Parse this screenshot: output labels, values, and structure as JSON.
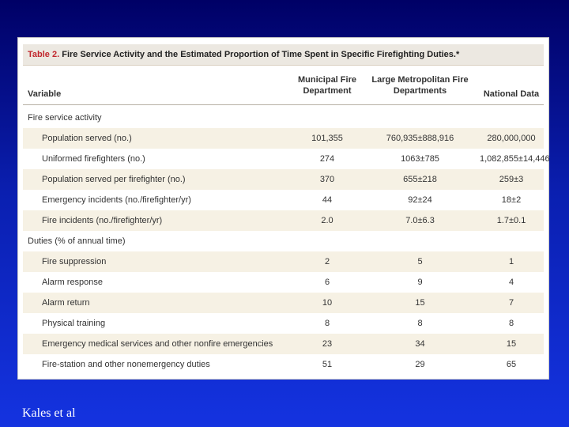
{
  "table": {
    "title_label": "Table 2.",
    "title_text": "Fire Service Activity and the Estimated Proportion of Time Spent in Specific Firefighting Duties.*",
    "headers": {
      "variable": "Variable",
      "col1": "Municipal Fire Department",
      "col2": "Large Metropolitan Fire Departments",
      "col3": "National Data"
    },
    "sections": [
      {
        "title": "Fire service activity",
        "rows": [
          {
            "label": "Population served (no.)",
            "c1": "101,355",
            "c2": "760,935±888,916",
            "c3": "280,000,000"
          },
          {
            "label": "Uniformed firefighters (no.)",
            "c1": "274",
            "c2": "1063±785",
            "c3": "1,082,855±14,446"
          },
          {
            "label": "Population served per firefighter (no.)",
            "c1": "370",
            "c2": "655±218",
            "c3": "259±3"
          },
          {
            "label": "Emergency incidents (no./firefighter/yr)",
            "c1": "44",
            "c2": "92±24",
            "c3": "18±2"
          },
          {
            "label": "Fire incidents (no./firefighter/yr)",
            "c1": "2.0",
            "c2": "7.0±6.3",
            "c3": "1.7±0.1"
          }
        ]
      },
      {
        "title": "Duties (% of annual time)",
        "rows": [
          {
            "label": "Fire suppression",
            "c1": "2",
            "c2": "5",
            "c3": "1"
          },
          {
            "label": "Alarm response",
            "c1": "6",
            "c2": "9",
            "c3": "4"
          },
          {
            "label": "Alarm return",
            "c1": "10",
            "c2": "15",
            "c3": "7"
          },
          {
            "label": "Physical training",
            "c1": "8",
            "c2": "8",
            "c3": "8"
          },
          {
            "label": "Emergency medical services and other nonfire emergencies",
            "c1": "23",
            "c2": "34",
            "c3": "15"
          },
          {
            "label": "Fire-station and other nonemergency duties",
            "c1": "51",
            "c2": "29",
            "c3": "65"
          }
        ]
      }
    ]
  },
  "caption": "Kales et al"
}
